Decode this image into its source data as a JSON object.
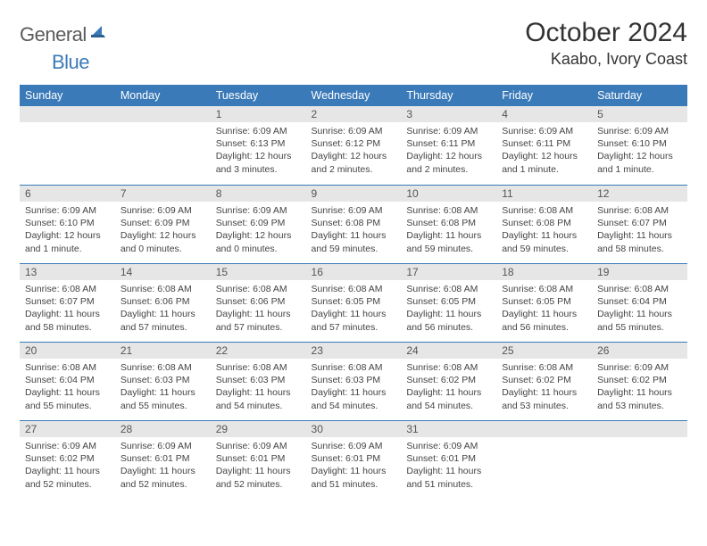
{
  "logo": {
    "text_gray": "General",
    "text_blue": "Blue"
  },
  "title": "October 2024",
  "location": "Kaabo, Ivory Coast",
  "colors": {
    "header_bg": "#3a7ab8",
    "header_text": "#ffffff",
    "daynum_bg": "#e6e6e6",
    "row_divider": "#3a7ab8",
    "body_text": "#444"
  },
  "day_headers": [
    "Sunday",
    "Monday",
    "Tuesday",
    "Wednesday",
    "Thursday",
    "Friday",
    "Saturday"
  ],
  "weeks": [
    [
      null,
      null,
      {
        "n": "1",
        "sr": "6:09 AM",
        "ss": "6:13 PM",
        "dl": "12 hours and 3 minutes."
      },
      {
        "n": "2",
        "sr": "6:09 AM",
        "ss": "6:12 PM",
        "dl": "12 hours and 2 minutes."
      },
      {
        "n": "3",
        "sr": "6:09 AM",
        "ss": "6:11 PM",
        "dl": "12 hours and 2 minutes."
      },
      {
        "n": "4",
        "sr": "6:09 AM",
        "ss": "6:11 PM",
        "dl": "12 hours and 1 minute."
      },
      {
        "n": "5",
        "sr": "6:09 AM",
        "ss": "6:10 PM",
        "dl": "12 hours and 1 minute."
      }
    ],
    [
      {
        "n": "6",
        "sr": "6:09 AM",
        "ss": "6:10 PM",
        "dl": "12 hours and 1 minute."
      },
      {
        "n": "7",
        "sr": "6:09 AM",
        "ss": "6:09 PM",
        "dl": "12 hours and 0 minutes."
      },
      {
        "n": "8",
        "sr": "6:09 AM",
        "ss": "6:09 PM",
        "dl": "12 hours and 0 minutes."
      },
      {
        "n": "9",
        "sr": "6:09 AM",
        "ss": "6:08 PM",
        "dl": "11 hours and 59 minutes."
      },
      {
        "n": "10",
        "sr": "6:08 AM",
        "ss": "6:08 PM",
        "dl": "11 hours and 59 minutes."
      },
      {
        "n": "11",
        "sr": "6:08 AM",
        "ss": "6:08 PM",
        "dl": "11 hours and 59 minutes."
      },
      {
        "n": "12",
        "sr": "6:08 AM",
        "ss": "6:07 PM",
        "dl": "11 hours and 58 minutes."
      }
    ],
    [
      {
        "n": "13",
        "sr": "6:08 AM",
        "ss": "6:07 PM",
        "dl": "11 hours and 58 minutes."
      },
      {
        "n": "14",
        "sr": "6:08 AM",
        "ss": "6:06 PM",
        "dl": "11 hours and 57 minutes."
      },
      {
        "n": "15",
        "sr": "6:08 AM",
        "ss": "6:06 PM",
        "dl": "11 hours and 57 minutes."
      },
      {
        "n": "16",
        "sr": "6:08 AM",
        "ss": "6:05 PM",
        "dl": "11 hours and 57 minutes."
      },
      {
        "n": "17",
        "sr": "6:08 AM",
        "ss": "6:05 PM",
        "dl": "11 hours and 56 minutes."
      },
      {
        "n": "18",
        "sr": "6:08 AM",
        "ss": "6:05 PM",
        "dl": "11 hours and 56 minutes."
      },
      {
        "n": "19",
        "sr": "6:08 AM",
        "ss": "6:04 PM",
        "dl": "11 hours and 55 minutes."
      }
    ],
    [
      {
        "n": "20",
        "sr": "6:08 AM",
        "ss": "6:04 PM",
        "dl": "11 hours and 55 minutes."
      },
      {
        "n": "21",
        "sr": "6:08 AM",
        "ss": "6:03 PM",
        "dl": "11 hours and 55 minutes."
      },
      {
        "n": "22",
        "sr": "6:08 AM",
        "ss": "6:03 PM",
        "dl": "11 hours and 54 minutes."
      },
      {
        "n": "23",
        "sr": "6:08 AM",
        "ss": "6:03 PM",
        "dl": "11 hours and 54 minutes."
      },
      {
        "n": "24",
        "sr": "6:08 AM",
        "ss": "6:02 PM",
        "dl": "11 hours and 54 minutes."
      },
      {
        "n": "25",
        "sr": "6:08 AM",
        "ss": "6:02 PM",
        "dl": "11 hours and 53 minutes."
      },
      {
        "n": "26",
        "sr": "6:09 AM",
        "ss": "6:02 PM",
        "dl": "11 hours and 53 minutes."
      }
    ],
    [
      {
        "n": "27",
        "sr": "6:09 AM",
        "ss": "6:02 PM",
        "dl": "11 hours and 52 minutes."
      },
      {
        "n": "28",
        "sr": "6:09 AM",
        "ss": "6:01 PM",
        "dl": "11 hours and 52 minutes."
      },
      {
        "n": "29",
        "sr": "6:09 AM",
        "ss": "6:01 PM",
        "dl": "11 hours and 52 minutes."
      },
      {
        "n": "30",
        "sr": "6:09 AM",
        "ss": "6:01 PM",
        "dl": "11 hours and 51 minutes."
      },
      {
        "n": "31",
        "sr": "6:09 AM",
        "ss": "6:01 PM",
        "dl": "11 hours and 51 minutes."
      },
      null,
      null
    ]
  ],
  "labels": {
    "sunrise": "Sunrise: ",
    "sunset": "Sunset: ",
    "daylight": "Daylight: "
  }
}
